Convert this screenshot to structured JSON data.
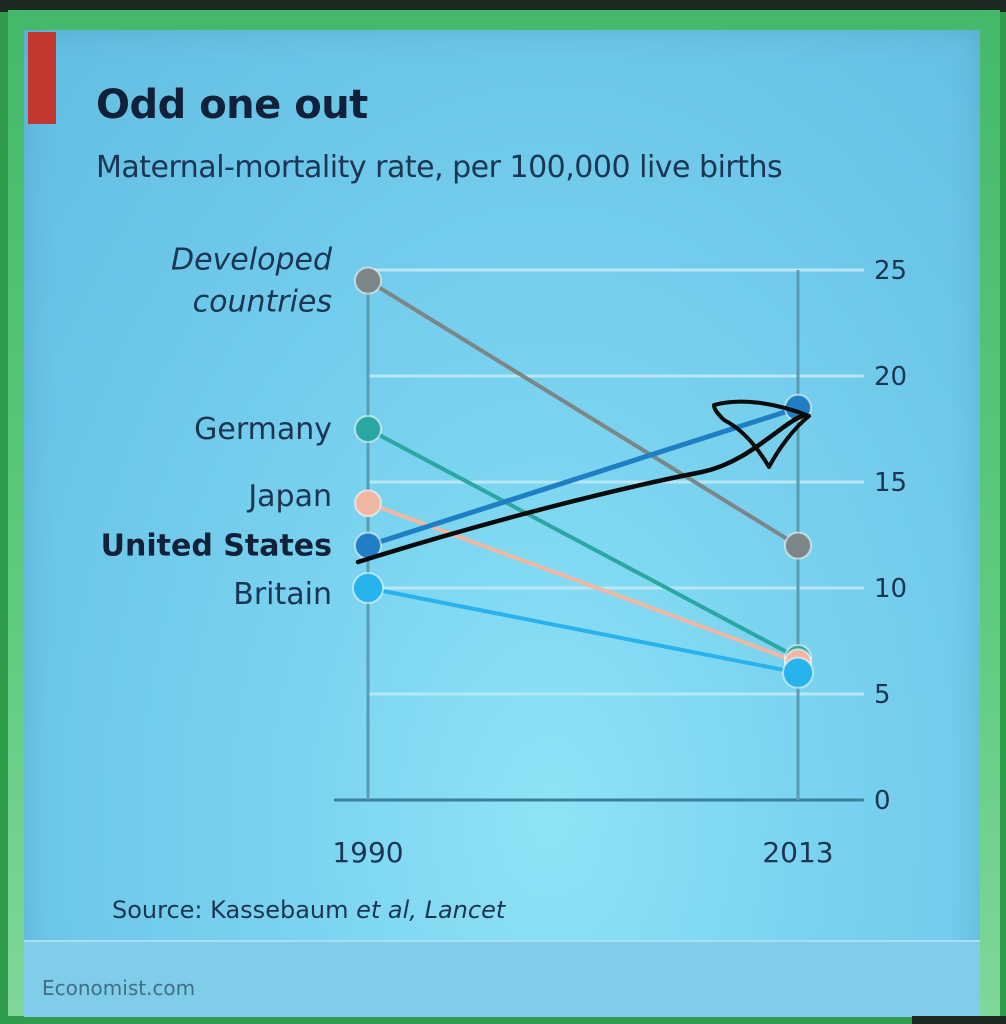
{
  "header": {
    "title": "Odd one out",
    "subtitle": "Maternal-mortality rate, per 100,000 live births"
  },
  "source": {
    "label": "Source:",
    "authors_a": "Kassebaum",
    "authors_b": "et al,",
    "journal": "Lancet"
  },
  "footer": {
    "brand": "Economist.com"
  },
  "colors": {
    "card_background": "#7ad3ef",
    "accent_red": "#c2372f",
    "grid_line": "#b8e6f7",
    "axis_line": "#3b7f9a",
    "annotation_ink": "#0b0b0b"
  },
  "chart_data": {
    "type": "line",
    "chart_style": "slope",
    "x": [
      "1990",
      "2013"
    ],
    "ylim": [
      0,
      25
    ],
    "yticks": [
      0,
      5,
      10,
      15,
      20,
      25
    ],
    "y_axis_side": "right",
    "grid": true,
    "series": [
      {
        "name": "Developed countries",
        "name_lines": [
          "Developed",
          "countries"
        ],
        "values": [
          24.5,
          12.0
        ],
        "color": "#7d8686",
        "label_style": "italic",
        "label_weight": "normal"
      },
      {
        "name": "Germany",
        "values": [
          17.5,
          6.7
        ],
        "color": "#2aa7a3",
        "label_style": "normal",
        "label_weight": "normal"
      },
      {
        "name": "Japan",
        "values": [
          14.0,
          6.5
        ],
        "color": "#f0b7a2",
        "label_style": "normal",
        "label_weight": "normal"
      },
      {
        "name": "United States",
        "values": [
          12.0,
          18.5
        ],
        "color": "#1f7ec4",
        "label_style": "normal",
        "label_weight": "bold"
      },
      {
        "name": "Britain",
        "values": [
          10.0,
          6.0
        ],
        "color": "#27b3ee",
        "label_style": "normal",
        "label_weight": "normal"
      }
    ],
    "annotation": "hand-drawn arrow tracing the United States line"
  }
}
